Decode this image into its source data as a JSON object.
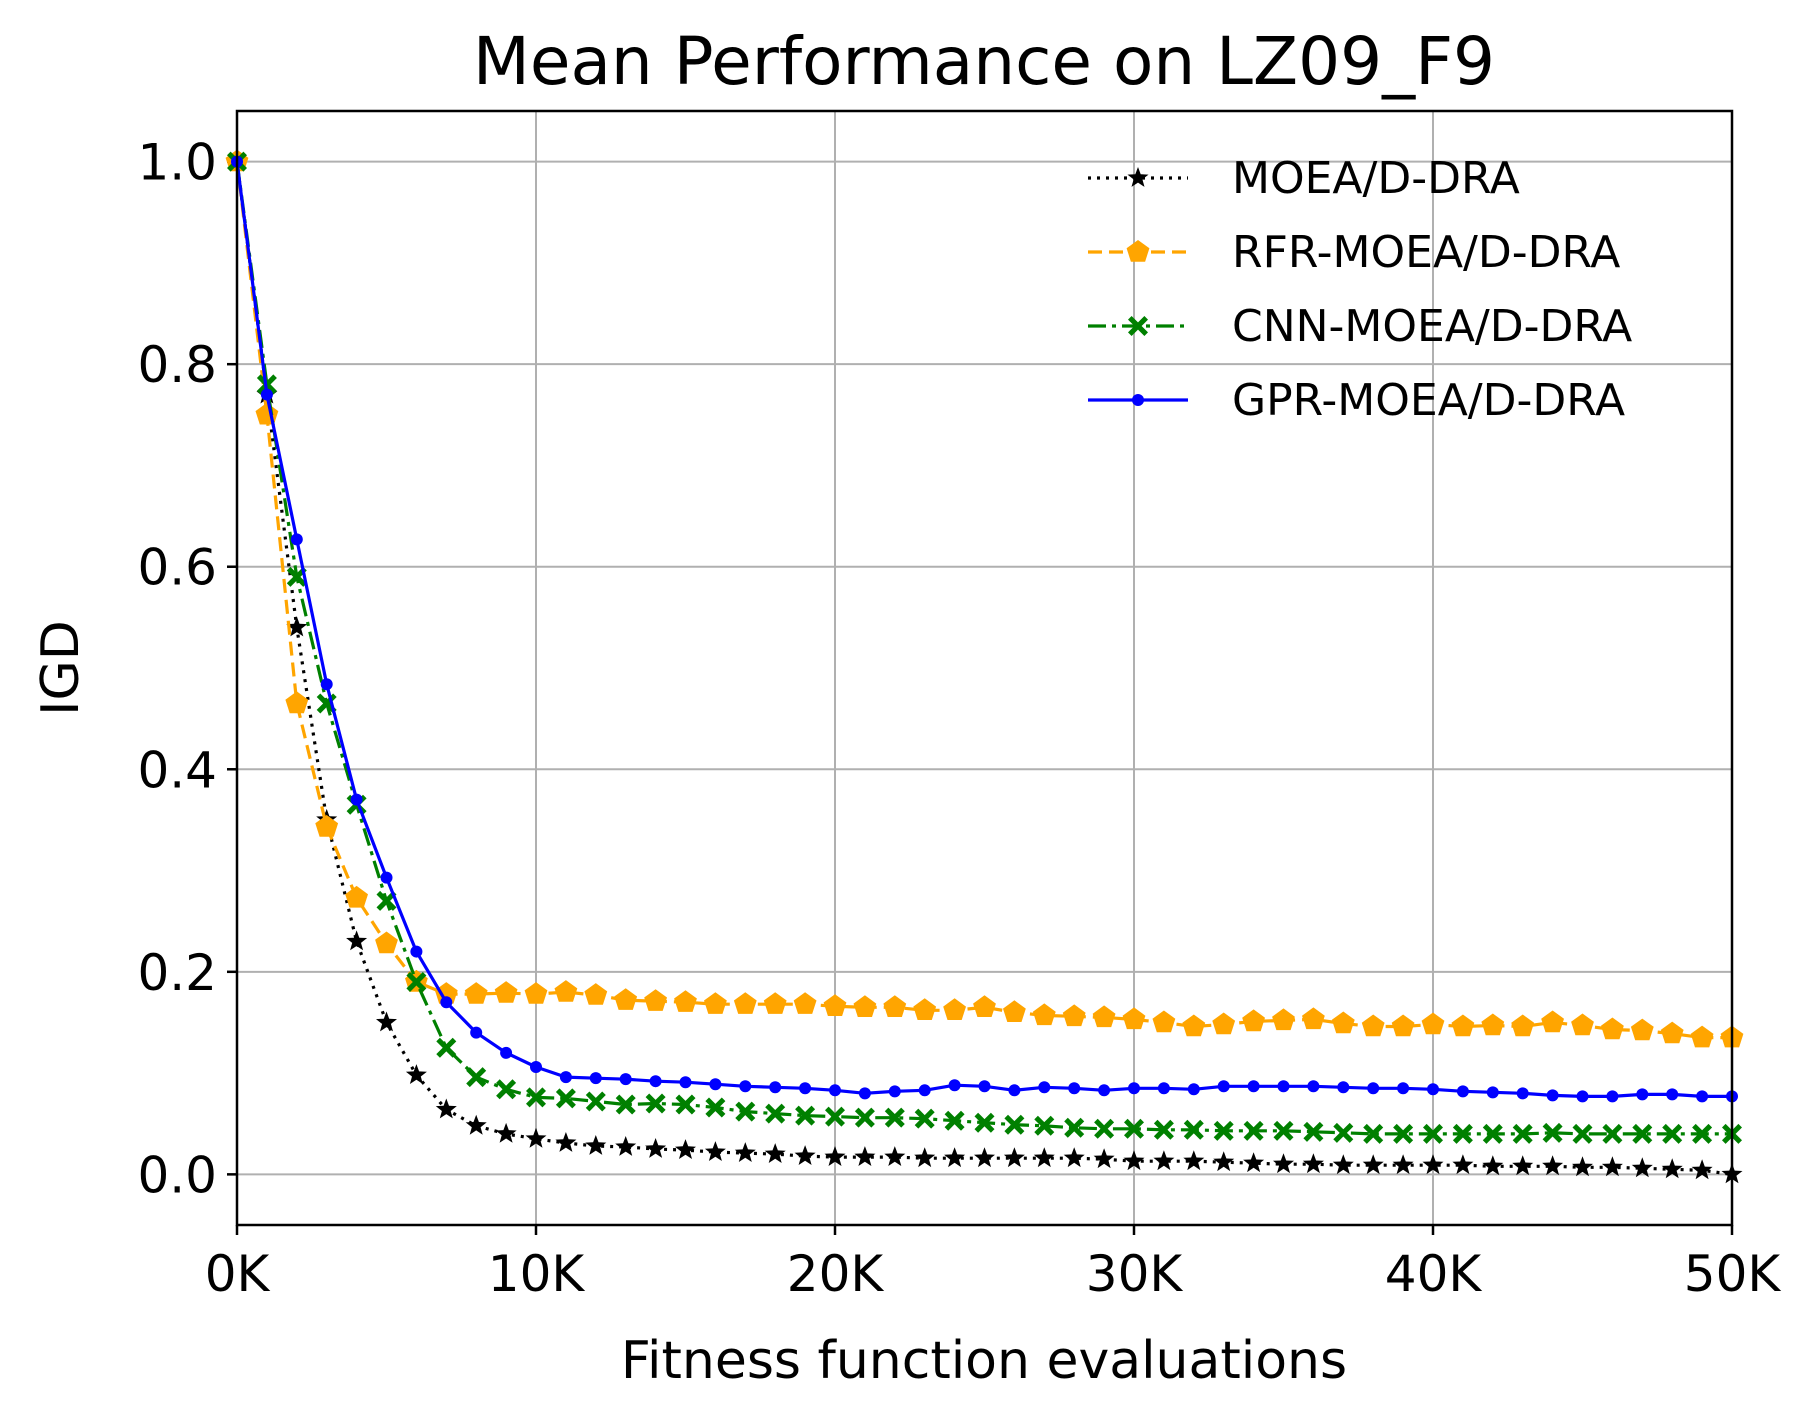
{
  "chart_data": {
    "type": "line",
    "title": "Mean Performance on LZ09_F9",
    "xlabel": "Fitness function evaluations",
    "ylabel": "IGD",
    "xlim": [
      0,
      50000
    ],
    "ylim": [
      -0.05,
      1.05
    ],
    "grid": true,
    "legend_position": "top-right",
    "x_ticks": [
      {
        "value": 0,
        "label": "0K"
      },
      {
        "value": 10000,
        "label": "10K"
      },
      {
        "value": 20000,
        "label": "20K"
      },
      {
        "value": 30000,
        "label": "30K"
      },
      {
        "value": 40000,
        "label": "40K"
      },
      {
        "value": 50000,
        "label": "50K"
      }
    ],
    "y_ticks": [
      {
        "value": 0.0,
        "label": "0.0"
      },
      {
        "value": 0.2,
        "label": "0.2"
      },
      {
        "value": 0.4,
        "label": "0.4"
      },
      {
        "value": 0.6,
        "label": "0.6"
      },
      {
        "value": 0.8,
        "label": "0.8"
      },
      {
        "value": 1.0,
        "label": "1.0"
      }
    ],
    "x": [
      0,
      1000,
      2000,
      3000,
      4000,
      5000,
      6000,
      7000,
      8000,
      9000,
      10000,
      11000,
      12000,
      13000,
      14000,
      15000,
      16000,
      17000,
      18000,
      19000,
      20000,
      21000,
      22000,
      23000,
      24000,
      25000,
      26000,
      27000,
      28000,
      29000,
      30000,
      31000,
      32000,
      33000,
      34000,
      35000,
      36000,
      37000,
      38000,
      39000,
      40000,
      41000,
      42000,
      43000,
      44000,
      45000,
      46000,
      47000,
      48000,
      49000,
      50000
    ],
    "series": [
      {
        "name": "MOEA/D-DRA",
        "color": "#000000",
        "line_style": "dotted",
        "marker": "star",
        "values": [
          1.0,
          0.77,
          0.54,
          0.35,
          0.23,
          0.15,
          0.098,
          0.064,
          0.048,
          0.04,
          0.035,
          0.031,
          0.028,
          0.027,
          0.025,
          0.024,
          0.022,
          0.021,
          0.02,
          0.018,
          0.017,
          0.017,
          0.017,
          0.016,
          0.016,
          0.016,
          0.016,
          0.016,
          0.016,
          0.015,
          0.013,
          0.013,
          0.013,
          0.012,
          0.011,
          0.01,
          0.01,
          0.009,
          0.009,
          0.009,
          0.009,
          0.009,
          0.008,
          0.008,
          0.008,
          0.007,
          0.007,
          0.006,
          0.005,
          0.004,
          0.0
        ]
      },
      {
        "name": "RFR-MOEA/D-DRA",
        "color": "#FFA500",
        "line_style": "dashed",
        "marker": "pentagon",
        "values": [
          1.0,
          0.75,
          0.465,
          0.343,
          0.273,
          0.228,
          0.19,
          0.178,
          0.178,
          0.179,
          0.178,
          0.18,
          0.177,
          0.172,
          0.171,
          0.17,
          0.168,
          0.168,
          0.168,
          0.168,
          0.166,
          0.165,
          0.165,
          0.162,
          0.162,
          0.165,
          0.16,
          0.157,
          0.156,
          0.155,
          0.153,
          0.15,
          0.146,
          0.148,
          0.151,
          0.152,
          0.153,
          0.149,
          0.146,
          0.146,
          0.148,
          0.146,
          0.147,
          0.146,
          0.15,
          0.147,
          0.143,
          0.142,
          0.139,
          0.135,
          0.135
        ]
      },
      {
        "name": "CNN-MOEA/D-DRA",
        "color": "#008000",
        "line_style": "dashdot",
        "marker": "x-filled",
        "values": [
          1.0,
          0.78,
          0.59,
          0.465,
          0.365,
          0.27,
          0.19,
          0.125,
          0.096,
          0.084,
          0.076,
          0.075,
          0.072,
          0.069,
          0.07,
          0.069,
          0.066,
          0.062,
          0.06,
          0.058,
          0.057,
          0.056,
          0.056,
          0.055,
          0.053,
          0.051,
          0.049,
          0.048,
          0.046,
          0.045,
          0.045,
          0.044,
          0.044,
          0.043,
          0.043,
          0.043,
          0.042,
          0.041,
          0.04,
          0.04,
          0.04,
          0.04,
          0.04,
          0.04,
          0.041,
          0.04,
          0.04,
          0.04,
          0.04,
          0.04,
          0.04
        ]
      },
      {
        "name": "GPR-MOEA/D-DRA",
        "color": "#0000FF",
        "line_style": "solid",
        "marker": "circle",
        "values": [
          1.0,
          0.77,
          0.627,
          0.484,
          0.37,
          0.293,
          0.22,
          0.17,
          0.14,
          0.12,
          0.106,
          0.096,
          0.095,
          0.094,
          0.092,
          0.091,
          0.089,
          0.087,
          0.086,
          0.085,
          0.083,
          0.08,
          0.082,
          0.083,
          0.088,
          0.087,
          0.083,
          0.086,
          0.085,
          0.083,
          0.085,
          0.085,
          0.084,
          0.087,
          0.087,
          0.087,
          0.087,
          0.086,
          0.085,
          0.085,
          0.084,
          0.082,
          0.081,
          0.08,
          0.078,
          0.077,
          0.077,
          0.079,
          0.079,
          0.077,
          0.077
        ]
      }
    ]
  }
}
